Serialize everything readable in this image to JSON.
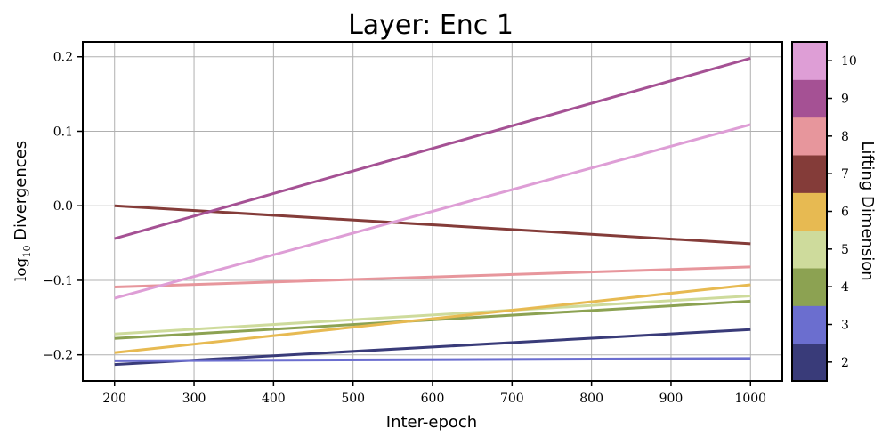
{
  "chart_data": {
    "type": "line",
    "title": "Layer: Enc 1",
    "xlabel": "Inter-epoch",
    "ylabel": "log10 Divergences",
    "ylabel_parts": {
      "base": "log",
      "sub": "10",
      "rest": " Divergences"
    },
    "xlim": [
      160,
      1040
    ],
    "ylim": [
      -0.235,
      0.22
    ],
    "x_ticks": [
      200,
      300,
      400,
      500,
      600,
      700,
      800,
      900,
      1000
    ],
    "x_tick_labels": [
      "200",
      "300",
      "400",
      "500",
      "600",
      "700",
      "800",
      "900",
      "1000"
    ],
    "y_ticks": [
      0.2,
      0.1,
      0.0,
      -0.1,
      -0.2
    ],
    "y_tick_labels": [
      "0.2",
      "0.1",
      "0.0",
      "−0.1",
      "−0.2"
    ],
    "grid": true,
    "series": [
      {
        "name": "2",
        "color": "#393b79",
        "x": [
          200,
          1000
        ],
        "y": [
          -0.213,
          -0.166
        ]
      },
      {
        "name": "3",
        "color": "#6b6ecf",
        "x": [
          200,
          1000
        ],
        "y": [
          -0.208,
          -0.205
        ]
      },
      {
        "name": "4",
        "color": "#8ca252",
        "x": [
          200,
          1000
        ],
        "y": [
          -0.178,
          -0.128
        ]
      },
      {
        "name": "5",
        "color": "#cedb9c",
        "x": [
          200,
          1000
        ],
        "y": [
          -0.172,
          -0.121
        ]
      },
      {
        "name": "6",
        "color": "#e7ba52",
        "x": [
          200,
          1000
        ],
        "y": [
          -0.197,
          -0.106
        ]
      },
      {
        "name": "7",
        "color": "#843c39",
        "x": [
          200,
          1000
        ],
        "y": [
          0.0,
          -0.051
        ]
      },
      {
        "name": "8",
        "color": "#e7969c",
        "x": [
          200,
          1000
        ],
        "y": [
          -0.109,
          -0.082
        ]
      },
      {
        "name": "9",
        "color": "#a55194",
        "x": [
          200,
          1000
        ],
        "y": [
          -0.044,
          0.198
        ]
      },
      {
        "name": "10",
        "color": "#de9ed6",
        "x": [
          200,
          1000
        ],
        "y": [
          -0.124,
          0.109
        ]
      }
    ],
    "colorbar": {
      "label": "Lifting Dimension",
      "levels": [
        "2",
        "3",
        "4",
        "5",
        "6",
        "7",
        "8",
        "9",
        "10"
      ],
      "colors": [
        "#393b79",
        "#6b6ecf",
        "#8ca252",
        "#cedb9c",
        "#e7ba52",
        "#843c39",
        "#e7969c",
        "#a55194",
        "#de9ed6"
      ]
    }
  }
}
